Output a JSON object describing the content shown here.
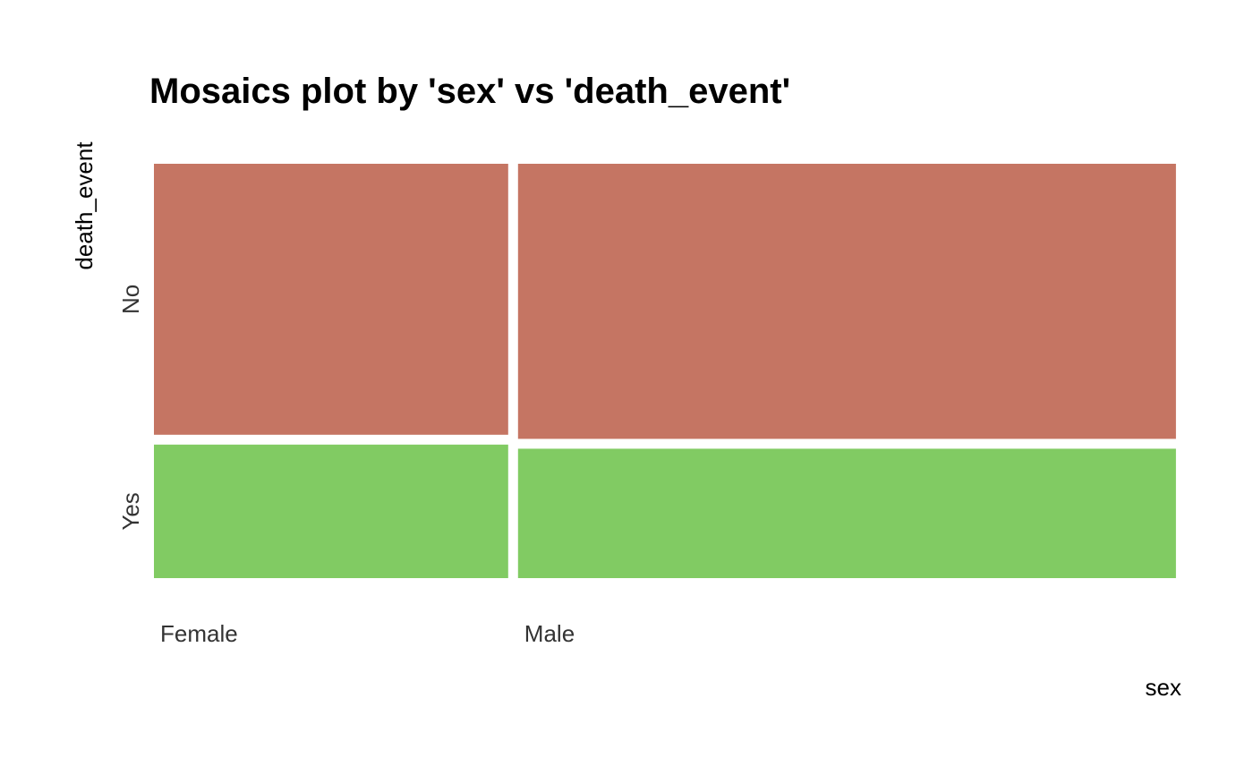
{
  "chart_data": {
    "type": "mosaic",
    "title": "Mosaics plot by 'sex' vs 'death_event'",
    "xlabel": "sex",
    "ylabel": "death_event",
    "categories": [
      "Female",
      "Male"
    ],
    "category_shares": [
      0.35,
      0.65
    ],
    "series": [
      {
        "name": "No",
        "values": [
          0.67,
          0.68
        ]
      },
      {
        "name": "Yes",
        "values": [
          0.33,
          0.32
        ]
      }
    ],
    "ylim": [
      0,
      1
    ],
    "legend": "none",
    "grid": false,
    "colors": {
      "No": "#c57563",
      "Yes": "#81cb63",
      "background": "#ffffff"
    }
  }
}
